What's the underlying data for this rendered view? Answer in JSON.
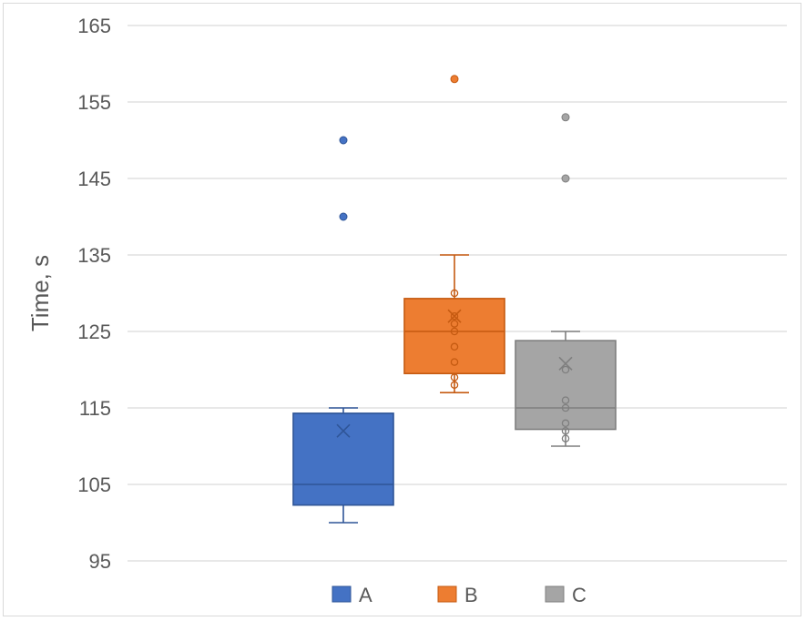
{
  "chart_data": {
    "type": "box",
    "title": "",
    "xlabel": "",
    "ylabel": "Time, s",
    "ylim": [
      95,
      165
    ],
    "yticks": [
      "95",
      "105",
      "115",
      "125",
      "135",
      "145",
      "155",
      "165"
    ],
    "grid": true,
    "legend_position": "bottom",
    "series": [
      {
        "name": "A",
        "color": "#4472c4",
        "whisker_low": 100,
        "q1": 102.3,
        "median": 105,
        "q3": 114.3,
        "whisker_high": 115,
        "mean": 112,
        "points": [],
        "outliers": [
          140,
          150
        ]
      },
      {
        "name": "B",
        "color": "#ed7d31",
        "whisker_low": 117,
        "q1": 119.5,
        "median": 125,
        "q3": 129.3,
        "whisker_high": 135,
        "mean": 127,
        "points": [
          118,
          119,
          121,
          123,
          125,
          126,
          127,
          130
        ],
        "outliers": [
          158
        ]
      },
      {
        "name": "C",
        "color": "#a5a5a5",
        "whisker_low": 110,
        "q1": 112.2,
        "median": 115,
        "q3": 123.8,
        "whisker_high": 125,
        "mean": 120.8,
        "points": [
          111,
          112,
          113,
          115,
          116,
          120
        ],
        "outliers": [
          145,
          153
        ]
      }
    ]
  }
}
